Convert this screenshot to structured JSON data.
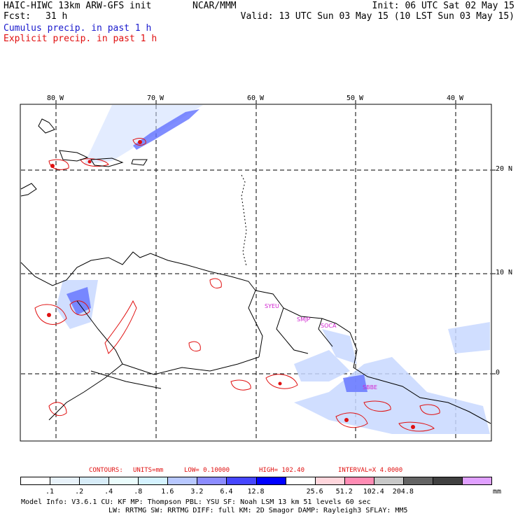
{
  "header": {
    "model": "HAIC-HIWC 13km ARW-GFS init",
    "org": "NCAR/MMM",
    "init": "Init: 06 UTC Sat 02 May 15",
    "fcst_label": "Fcst:",
    "fcst_value": "31 h",
    "valid": "Valid: 13 UTC Sun 03 May 15 (10 LST Sun 03 May 15)"
  },
  "legend": {
    "cumulus": "Cumulus precip. in past 1 h",
    "explicit": "Explicit precip. in past 1 h"
  },
  "axes": {
    "lon_labels": [
      "80 W",
      "70 W",
      "60 W",
      "50 W",
      "40 W"
    ],
    "lat_labels": [
      "20 N",
      "10 N",
      "0"
    ]
  },
  "stations": [
    "SYEU",
    "SMJP",
    "SOCA",
    "SBBE"
  ],
  "contours": {
    "label": "CONTOURS:",
    "units": "UNITS=mm",
    "low": "LOW=  0.10000",
    "high": "HIGH=   102.40",
    "interval": "INTERVAL=X   4.0000"
  },
  "colorbar": {
    "unit": "mm",
    "colors": [
      "#ffffff",
      "#e8f2fa",
      "#d7ecf8",
      "#eafcfc",
      "#d4f2ff",
      "#b8c8ff",
      "#8c8cff",
      "#4646ff",
      "#0000ff",
      "#ffffff",
      "#ffd6dc",
      "#ff8cb4",
      "#c8c8c8",
      "#646464",
      "#404040",
      "#e0a0ff"
    ],
    "labels": [
      ".1",
      ".2",
      ".4",
      ".8",
      "1.6",
      "3.2",
      "6.4",
      "12.8",
      "25.6",
      "51.2",
      "102.4",
      "204.8"
    ]
  },
  "model_info": {
    "line1": "Model Info: V3.6.1     CU: KF      MP: Thompson     PBL: YSU       SF: Noah LSM     13 km    51 levels   60 sec",
    "line2": "LW: RRTMG     SW: RRTMG    DIFF: full     KM: 2D Smagor DAMP: Rayleigh3   SFLAY: MM5"
  }
}
